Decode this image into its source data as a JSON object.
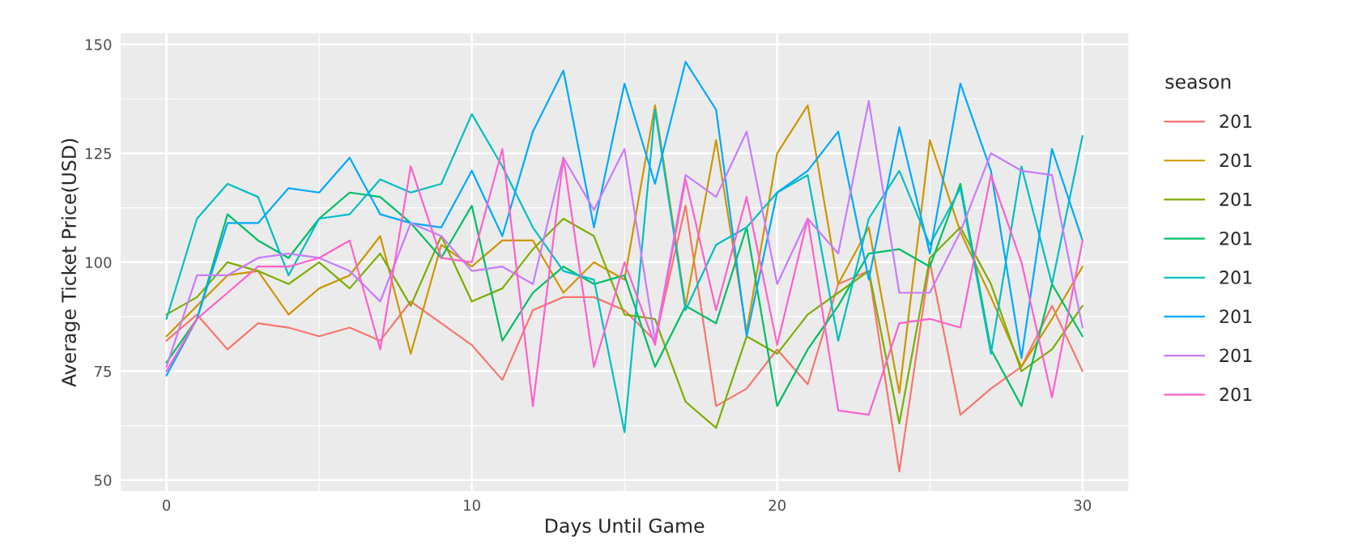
{
  "chart_data": {
    "type": "line",
    "xlabel": "Days Until Game",
    "ylabel": "Average Ticket Price(USD)",
    "legend_title": "season",
    "legend": "right",
    "grid": true,
    "x": [
      0,
      1,
      2,
      3,
      4,
      5,
      6,
      7,
      8,
      9,
      10,
      11,
      12,
      13,
      14,
      15,
      16,
      17,
      18,
      19,
      20,
      21,
      22,
      23,
      24,
      25,
      26,
      27,
      28,
      29,
      30
    ],
    "xlim": [
      -1.5,
      31.5
    ],
    "xticks": [
      0,
      10,
      20,
      30
    ],
    "ylim": [
      47.5,
      152.5
    ],
    "yticks": [
      50,
      75,
      100,
      125,
      150
    ],
    "series": [
      {
        "name": "201",
        "color": "#F8766D",
        "values": [
          82,
          88,
          80,
          86,
          85,
          83,
          85,
          82,
          91,
          86,
          81,
          73,
          89,
          92,
          92,
          89,
          82,
          113,
          67,
          71,
          80,
          72,
          95,
          98,
          52,
          100,
          65,
          71,
          76,
          90,
          75
        ]
      },
      {
        "name": "201",
        "color": "#CD9600",
        "values": [
          83,
          90,
          97,
          98,
          88,
          94,
          97,
          106,
          79,
          104,
          99,
          105,
          105,
          93,
          100,
          96,
          136,
          90,
          128,
          84,
          125,
          136,
          95,
          108,
          70,
          128,
          107,
          92,
          76,
          87,
          99
        ]
      },
      {
        "name": "201",
        "color": "#7CAE00",
        "values": [
          88,
          92,
          100,
          98,
          95,
          100,
          94,
          102,
          90,
          106,
          91,
          94,
          103,
          110,
          106,
          88,
          87,
          68,
          62,
          83,
          79,
          88,
          93,
          98,
          63,
          101,
          108,
          95,
          75,
          80,
          90
        ]
      },
      {
        "name": "201",
        "color": "#00BE67",
        "values": [
          77,
          87,
          111,
          105,
          101,
          110,
          116,
          115,
          109,
          101,
          113,
          82,
          93,
          99,
          95,
          97,
          76,
          90,
          86,
          108,
          67,
          80,
          90,
          102,
          103,
          99,
          118,
          80,
          67,
          95,
          83
        ]
      },
      {
        "name": "201",
        "color": "#00BFC4",
        "values": [
          87,
          110,
          118,
          115,
          97,
          110,
          111,
          119,
          116,
          118,
          134,
          122,
          108,
          98,
          96,
          61,
          135,
          89,
          104,
          108,
          116,
          120,
          82,
          110,
          121,
          104,
          117,
          79,
          122,
          95,
          129
        ]
      },
      {
        "name": "201",
        "color": "#00A9FF",
        "values": [
          74,
          87,
          109,
          109,
          117,
          116,
          124,
          111,
          109,
          108,
          121,
          106,
          130,
          144,
          108,
          141,
          118,
          146,
          135,
          83,
          116,
          121,
          130,
          96,
          131,
          102,
          141,
          121,
          78,
          126,
          105
        ]
      },
      {
        "name": "201",
        "color": "#C77CFF",
        "values": [
          76,
          97,
          97,
          101,
          102,
          101,
          98,
          91,
          109,
          106,
          98,
          99,
          95,
          124,
          112,
          126,
          82,
          120,
          115,
          130,
          95,
          110,
          102,
          137,
          93,
          93,
          107,
          125,
          121,
          120,
          85
        ]
      },
      {
        "name": "201",
        "color": "#FF61CC",
        "values": [
          75,
          87,
          93,
          99,
          99,
          101,
          105,
          80,
          122,
          101,
          100,
          126,
          67,
          124,
          76,
          100,
          81,
          119,
          89,
          115,
          81,
          110,
          66,
          65,
          86,
          87,
          85,
          120,
          100,
          69,
          105
        ]
      }
    ]
  }
}
